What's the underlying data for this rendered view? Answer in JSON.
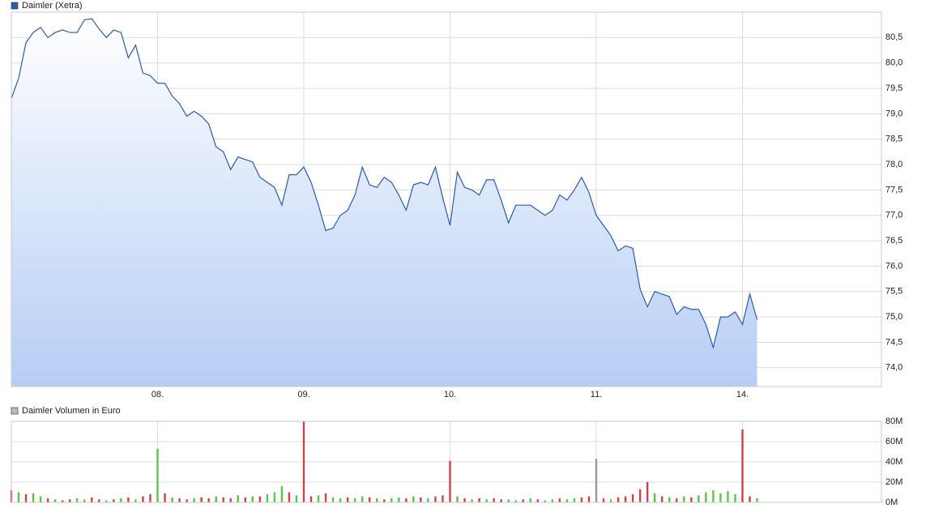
{
  "chart_data": [
    {
      "type": "line",
      "categories": [
        null,
        null,
        null,
        null,
        null,
        null,
        null,
        null,
        null,
        null,
        null,
        null,
        null,
        null,
        null,
        null,
        null,
        null,
        null,
        null,
        "08.",
        null,
        null,
        null,
        null,
        null,
        null,
        null,
        null,
        null,
        null,
        null,
        null,
        null,
        null,
        null,
        null,
        null,
        null,
        null,
        "09.",
        null,
        null,
        null,
        null,
        null,
        null,
        null,
        null,
        null,
        null,
        null,
        null,
        null,
        null,
        null,
        null,
        null,
        null,
        null,
        "10.",
        null,
        null,
        null,
        null,
        null,
        null,
        null,
        null,
        null,
        null,
        null,
        null,
        null,
        null,
        null,
        null,
        null,
        null,
        null,
        "11.",
        null,
        null,
        null,
        null,
        null,
        null,
        null,
        null,
        null,
        null,
        null,
        null,
        null,
        null,
        null,
        null,
        null,
        null,
        null,
        "14.",
        null,
        null,
        null,
        null,
        null,
        null,
        null,
        null,
        null,
        null,
        null,
        null,
        null,
        null,
        null,
        null,
        null,
        null,
        null
      ],
      "series": [
        {
          "name": "Daimler (Xetra)",
          "color": "#2a5caa",
          "values": [
            79.3,
            79.7,
            80.4,
            80.6,
            80.7,
            80.5,
            80.6,
            80.65,
            80.6,
            80.6,
            80.85,
            80.87,
            80.67,
            80.5,
            80.65,
            80.6,
            80.1,
            80.35,
            79.8,
            79.75,
            79.6,
            79.6,
            79.35,
            79.2,
            78.95,
            79.05,
            78.95,
            78.8,
            78.35,
            78.25,
            77.9,
            78.15,
            78.1,
            78.05,
            77.75,
            77.65,
            77.55,
            77.2,
            77.8,
            77.8,
            77.95,
            77.65,
            77.2,
            76.7,
            76.75,
            77.0,
            77.1,
            77.4,
            77.95,
            77.6,
            77.55,
            77.75,
            77.65,
            77.4,
            77.1,
            77.6,
            77.65,
            77.6,
            77.95,
            77.35,
            76.8,
            77.85,
            77.55,
            77.5,
            77.4,
            77.7,
            77.7,
            77.3,
            76.85,
            77.2,
            77.2,
            77.2,
            77.1,
            77.0,
            77.1,
            77.4,
            77.3,
            77.5,
            77.75,
            77.45,
            77.0,
            76.8,
            76.6,
            76.3,
            76.4,
            76.35,
            75.55,
            75.2,
            75.5,
            75.45,
            75.4,
            75.05,
            75.2,
            75.15,
            75.15,
            74.85,
            74.4,
            75.0,
            75.0,
            75.1,
            74.85,
            75.45,
            74.95,
            null,
            null,
            null,
            null,
            null,
            null,
            null,
            null,
            null,
            null,
            null,
            null,
            null,
            null,
            null,
            null,
            null
          ]
        }
      ],
      "ylim": [
        73.63,
        81.0
      ],
      "yticks": [
        {
          "value": 74.0,
          "label": "74,0"
        },
        {
          "value": 74.5,
          "label": "74,5"
        },
        {
          "value": 75.0,
          "label": "75,0"
        },
        {
          "value": 75.5,
          "label": "75,5"
        },
        {
          "value": 76.0,
          "label": "76,0"
        },
        {
          "value": 76.5,
          "label": "76,5"
        },
        {
          "value": 77.0,
          "label": "77,0"
        },
        {
          "value": 77.5,
          "label": "77,5"
        },
        {
          "value": 78.0,
          "label": "78,0"
        },
        {
          "value": 78.5,
          "label": "78,5"
        },
        {
          "value": 79.0,
          "label": "79,0"
        },
        {
          "value": 79.5,
          "label": "79,5"
        },
        {
          "value": 80.0,
          "label": "80,0"
        },
        {
          "value": 80.5,
          "label": "80,5"
        }
      ],
      "grid": true
    },
    {
      "type": "bar",
      "series": [
        {
          "name": "Daimler Volumen in Euro",
          "color": "#bdbdbd",
          "values": [
            12,
            10,
            8,
            9,
            6,
            4,
            3,
            2,
            3,
            4,
            3,
            5,
            3,
            2,
            3,
            4,
            5,
            3,
            6,
            8,
            53,
            9,
            5,
            4,
            3,
            4,
            5,
            4,
            6,
            5,
            4,
            7,
            5,
            6,
            6,
            8,
            10,
            16,
            10,
            7,
            80,
            6,
            7,
            9,
            5,
            4,
            5,
            4,
            6,
            5,
            4,
            3,
            4,
            5,
            4,
            6,
            5,
            4,
            6,
            7,
            41,
            6,
            4,
            3,
            4,
            3,
            4,
            3,
            3,
            2,
            3,
            4,
            3,
            2,
            3,
            4,
            3,
            4,
            5,
            6,
            43,
            4,
            3,
            5,
            6,
            8,
            13,
            20,
            9,
            6,
            5,
            4,
            6,
            5,
            7,
            10,
            12,
            9,
            11,
            8,
            72,
            6,
            4
          ]
        }
      ],
      "bar_colors": [
        "#d0424a",
        "#5cc34a",
        "#d0424a",
        "#5cc34a",
        "#5cc34a",
        "#d0424a",
        "#5cc34a",
        "#d0424a",
        "#d0424a",
        "#5cc34a",
        "#5cc34a",
        "#d0424a",
        "#d0424a",
        "#5cc34a",
        "#d0424a",
        "#5cc34a",
        "#d0424a",
        "#5cc34a",
        "#d0424a",
        "#d0424a",
        "#5cc34a",
        "#d0424a",
        "#5cc34a",
        "#d0424a",
        "#d0424a",
        "#5cc34a",
        "#d0424a",
        "#d0424a",
        "#5cc34a",
        "#d0424a",
        "#d0424a",
        "#5cc34a",
        "#d0424a",
        "#5cc34a",
        "#d0424a",
        "#5cc34a",
        "#5cc34a",
        "#5cc34a",
        "#d0424a",
        "#5cc34a",
        "#d0424a",
        "#d0424a",
        "#5cc34a",
        "#d0424a",
        "#5cc34a",
        "#5cc34a",
        "#d0424a",
        "#5cc34a",
        "#5cc34a",
        "#d0424a",
        "#5cc34a",
        "#d0424a",
        "#5cc34a",
        "#5cc34a",
        "#d0424a",
        "#5cc34a",
        "#d0424a",
        "#5cc34a",
        "#d0424a",
        "#d0424a",
        "#d0424a",
        "#5cc34a",
        "#d0424a",
        "#5cc34a",
        "#d0424a",
        "#5cc34a",
        "#d0424a",
        "#d0424a",
        "#5cc34a",
        "#5cc34a",
        "#d0424a",
        "#5cc34a",
        "#d0424a",
        "#5cc34a",
        "#5cc34a",
        "#d0424a",
        "#5cc34a",
        "#5cc34a",
        "#d0424a",
        "#d0424a",
        "#999999",
        "#d0424a",
        "#5cc34a",
        "#d0424a",
        "#d0424a",
        "#d0424a",
        "#d0424a",
        "#d0424a",
        "#5cc34a",
        "#d0424a",
        "#5cc34a",
        "#d0424a",
        "#5cc34a",
        "#d0424a",
        "#5cc34a",
        "#5cc34a",
        "#5cc34a",
        "#5cc34a",
        "#5cc34a",
        "#5cc34a",
        "#d0424a",
        "#d0424a",
        "#5cc34a"
      ],
      "ylim": [
        0,
        80
      ],
      "yticks": [
        {
          "value": 0,
          "label": "0M"
        },
        {
          "value": 20,
          "label": "20M"
        },
        {
          "value": 40,
          "label": "40M"
        },
        {
          "value": 60,
          "label": "60M"
        },
        {
          "value": 80,
          "label": "80M"
        }
      ],
      "grid": true
    }
  ]
}
